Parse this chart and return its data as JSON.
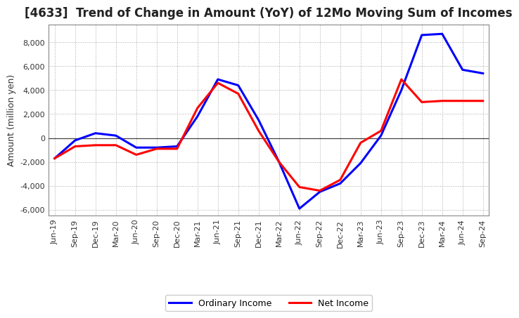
{
  "title": "[4633]  Trend of Change in Amount (YoY) of 12Mo Moving Sum of Incomes",
  "ylabel": "Amount (million yen)",
  "x_labels": [
    "Jun-19",
    "Sep-19",
    "Dec-19",
    "Mar-20",
    "Jun-20",
    "Sep-20",
    "Dec-20",
    "Mar-21",
    "Jun-21",
    "Sep-21",
    "Dec-21",
    "Mar-22",
    "Jun-22",
    "Sep-22",
    "Dec-22",
    "Mar-23",
    "Jun-23",
    "Sep-23",
    "Dec-23",
    "Mar-24",
    "Jun-24",
    "Sep-24"
  ],
  "ordinary_income": [
    -1700,
    -200,
    400,
    200,
    -800,
    -800,
    -700,
    1800,
    4900,
    4400,
    1500,
    -2000,
    -5900,
    -4500,
    -3800,
    -2100,
    200,
    4000,
    8600,
    8700,
    5700,
    5400
  ],
  "net_income": [
    -1700,
    -700,
    -600,
    -600,
    -1400,
    -900,
    -900,
    2500,
    4600,
    3700,
    600,
    -2000,
    -4100,
    -4400,
    -3500,
    -400,
    600,
    4900,
    3000,
    3100,
    3100,
    3100
  ],
  "ordinary_color": "#0000ff",
  "net_color": "#ff0000",
  "background_color": "#ffffff",
  "plot_bg_color": "#ffffff",
  "grid_color": "#aaaaaa",
  "ylim": [
    -6500,
    9500
  ],
  "yticks": [
    -6000,
    -4000,
    -2000,
    0,
    2000,
    4000,
    6000,
    8000
  ],
  "legend_labels": [
    "Ordinary Income",
    "Net Income"
  ],
  "line_width": 2.2,
  "title_fontsize": 12,
  "axis_fontsize": 9,
  "tick_fontsize": 8,
  "legend_fontsize": 9
}
